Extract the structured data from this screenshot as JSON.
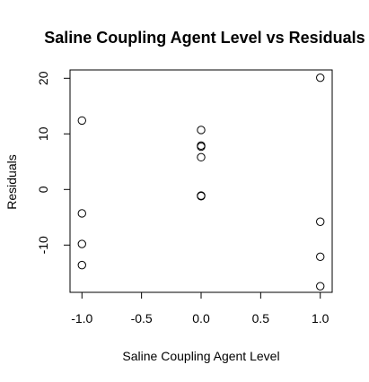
{
  "chart_data": {
    "type": "scatter",
    "title": "Saline Coupling Agent Level vs Residuals",
    "xlabel": "Saline Coupling Agent Level",
    "ylabel": "Residuals",
    "xlim": [
      -1.1,
      1.1
    ],
    "ylim": [
      -18.5,
      21.5
    ],
    "x_ticks": [
      -1.0,
      -0.5,
      0.0,
      0.5,
      1.0
    ],
    "x_tick_labels": [
      "-1.0",
      "-0.5",
      "0.0",
      "0.5",
      "1.0"
    ],
    "y_ticks": [
      -10,
      0,
      10,
      20
    ],
    "y_tick_labels": [
      "-10",
      "0",
      "10",
      "20"
    ],
    "grid": false,
    "marker": "open-circle",
    "points": [
      {
        "x": -1.0,
        "y": 12.4
      },
      {
        "x": -1.0,
        "y": -4.3
      },
      {
        "x": -1.0,
        "y": -9.8
      },
      {
        "x": -1.0,
        "y": -13.6
      },
      {
        "x": 0.0,
        "y": 10.7
      },
      {
        "x": 0.0,
        "y": 7.9
      },
      {
        "x": 0.0,
        "y": 7.7
      },
      {
        "x": 0.0,
        "y": 5.8
      },
      {
        "x": 0.0,
        "y": -1.2
      },
      {
        "x": 0.0,
        "y": -1.1
      },
      {
        "x": 1.0,
        "y": 20.1
      },
      {
        "x": 1.0,
        "y": -5.8
      },
      {
        "x": 1.0,
        "y": -12.1
      },
      {
        "x": 1.0,
        "y": -17.4
      }
    ]
  }
}
